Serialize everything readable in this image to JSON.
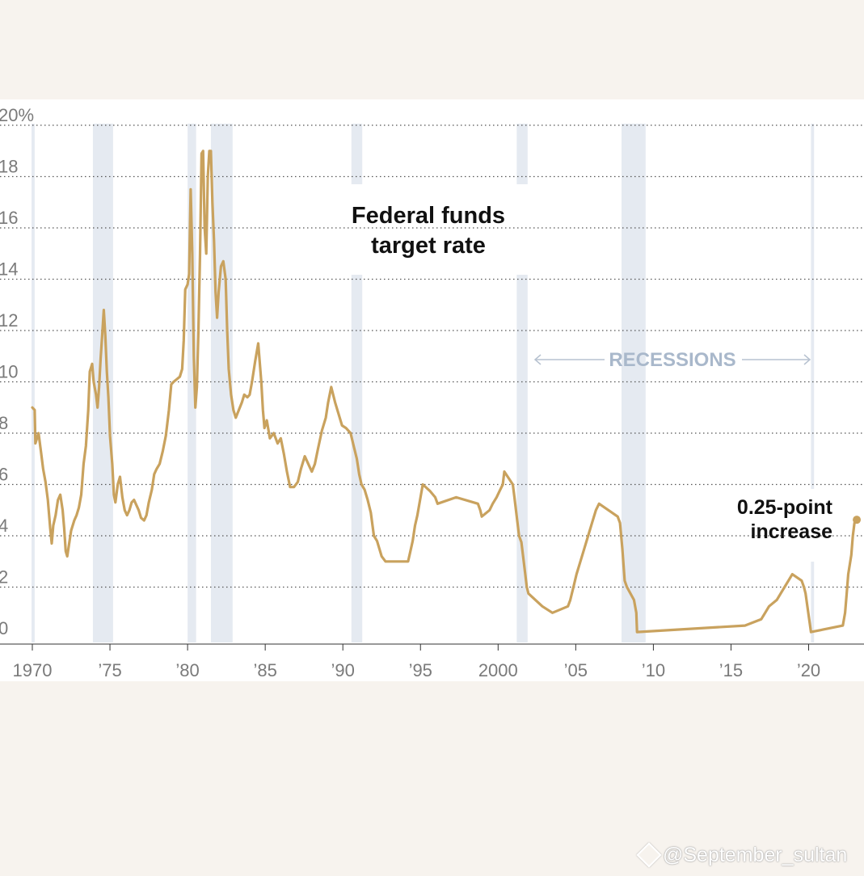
{
  "chart_data": {
    "type": "line",
    "title_lines": [
      "Federal funds",
      "target rate"
    ],
    "xlabel": "",
    "ylabel": "",
    "xlim": [
      1970,
      2023.5
    ],
    "ylim": [
      0,
      20
    ],
    "y_ticks": [
      {
        "value": 20,
        "label": "20%"
      },
      {
        "value": 18,
        "label": "18"
      },
      {
        "value": 16,
        "label": "16"
      },
      {
        "value": 14,
        "label": "14"
      },
      {
        "value": 12,
        "label": "12"
      },
      {
        "value": 10,
        "label": "10"
      },
      {
        "value": 8,
        "label": "8"
      },
      {
        "value": 6,
        "label": "6"
      },
      {
        "value": 4,
        "label": "4"
      },
      {
        "value": 2,
        "label": "2"
      },
      {
        "value": 0,
        "label": "0"
      }
    ],
    "x_ticks": [
      {
        "value": 1970,
        "label": "1970"
      },
      {
        "value": 1975,
        "label": "’75"
      },
      {
        "value": 1980,
        "label": "’80"
      },
      {
        "value": 1985,
        "label": "’85"
      },
      {
        "value": 1990,
        "label": "’90"
      },
      {
        "value": 1995,
        "label": "’95"
      },
      {
        "value": 2000,
        "label": "2000"
      },
      {
        "value": 2005,
        "label": "’05"
      },
      {
        "value": 2010,
        "label": "’10"
      },
      {
        "value": 2015,
        "label": "’15"
      },
      {
        "value": 2020,
        "label": "’20"
      }
    ],
    "grid": true,
    "recessions_label": "RECESSIONS",
    "recessions": [
      [
        1969.95,
        1970.15
      ],
      [
        1973.9,
        1975.2
      ],
      [
        1980.0,
        1980.55
      ],
      [
        1981.5,
        1982.9
      ],
      [
        1990.55,
        1991.25
      ],
      [
        2001.2,
        2001.9
      ],
      [
        2007.95,
        2009.5
      ],
      [
        2020.15,
        2020.35
      ]
    ],
    "annotation": {
      "lines": [
        "0.25-point",
        "increase"
      ],
      "x": 2023.1,
      "y": 4.625
    },
    "series": [
      {
        "name": "",
        "color": "#c9a25e",
        "points": [
          [
            1970.0,
            9.0
          ],
          [
            1970.15,
            8.9
          ],
          [
            1970.2,
            7.6
          ],
          [
            1970.4,
            8.0
          ],
          [
            1970.55,
            7.3
          ],
          [
            1970.7,
            6.6
          ],
          [
            1970.85,
            6.1
          ],
          [
            1971.0,
            5.4
          ],
          [
            1971.15,
            4.3
          ],
          [
            1971.25,
            3.7
          ],
          [
            1971.35,
            4.4
          ],
          [
            1971.5,
            4.8
          ],
          [
            1971.65,
            5.4
          ],
          [
            1971.8,
            5.6
          ],
          [
            1971.95,
            5.0
          ],
          [
            1972.05,
            4.3
          ],
          [
            1972.15,
            3.4
          ],
          [
            1972.25,
            3.2
          ],
          [
            1972.35,
            3.6
          ],
          [
            1972.5,
            4.2
          ],
          [
            1972.7,
            4.6
          ],
          [
            1972.85,
            4.8
          ],
          [
            1973.0,
            5.1
          ],
          [
            1973.15,
            5.6
          ],
          [
            1973.3,
            6.8
          ],
          [
            1973.45,
            7.5
          ],
          [
            1973.6,
            8.9
          ],
          [
            1973.7,
            10.4
          ],
          [
            1973.85,
            10.7
          ],
          [
            1973.95,
            10.0
          ],
          [
            1974.1,
            9.5
          ],
          [
            1974.2,
            9.0
          ],
          [
            1974.3,
            9.8
          ],
          [
            1974.4,
            10.9
          ],
          [
            1974.5,
            11.8
          ],
          [
            1974.6,
            12.8
          ],
          [
            1974.7,
            11.8
          ],
          [
            1974.8,
            10.4
          ],
          [
            1974.9,
            9.4
          ],
          [
            1975.0,
            7.9
          ],
          [
            1975.15,
            6.8
          ],
          [
            1975.25,
            5.6
          ],
          [
            1975.35,
            5.3
          ],
          [
            1975.5,
            6.0
          ],
          [
            1975.65,
            6.3
          ],
          [
            1975.8,
            5.5
          ],
          [
            1975.95,
            5.0
          ],
          [
            1976.1,
            4.8
          ],
          [
            1976.25,
            5.0
          ],
          [
            1976.4,
            5.3
          ],
          [
            1976.55,
            5.4
          ],
          [
            1976.7,
            5.2
          ],
          [
            1976.85,
            5.0
          ],
          [
            1977.0,
            4.7
          ],
          [
            1977.2,
            4.6
          ],
          [
            1977.35,
            4.8
          ],
          [
            1977.5,
            5.3
          ],
          [
            1977.7,
            5.8
          ],
          [
            1977.85,
            6.4
          ],
          [
            1978.0,
            6.6
          ],
          [
            1978.2,
            6.8
          ],
          [
            1978.4,
            7.3
          ],
          [
            1978.6,
            7.9
          ],
          [
            1978.8,
            8.9
          ],
          [
            1978.95,
            9.9
          ],
          [
            1979.1,
            10.0
          ],
          [
            1979.3,
            10.1
          ],
          [
            1979.5,
            10.2
          ],
          [
            1979.65,
            10.5
          ],
          [
            1979.75,
            11.6
          ],
          [
            1979.85,
            13.6
          ],
          [
            1980.0,
            13.8
          ],
          [
            1980.1,
            14.2
          ],
          [
            1980.2,
            17.5
          ],
          [
            1980.3,
            15.0
          ],
          [
            1980.4,
            11.0
          ],
          [
            1980.5,
            9.0
          ],
          [
            1980.6,
            9.8
          ],
          [
            1980.7,
            12.0
          ],
          [
            1980.8,
            15.0
          ],
          [
            1980.9,
            18.9
          ],
          [
            1981.0,
            19.0
          ],
          [
            1981.1,
            16.0
          ],
          [
            1981.2,
            15.0
          ],
          [
            1981.3,
            18.0
          ],
          [
            1981.4,
            19.0
          ],
          [
            1981.5,
            19.0
          ],
          [
            1981.6,
            17.0
          ],
          [
            1981.7,
            15.5
          ],
          [
            1981.8,
            13.5
          ],
          [
            1981.9,
            12.5
          ],
          [
            1982.0,
            13.5
          ],
          [
            1982.15,
            14.5
          ],
          [
            1982.3,
            14.7
          ],
          [
            1982.45,
            14.0
          ],
          [
            1982.55,
            12.0
          ],
          [
            1982.65,
            10.5
          ],
          [
            1982.8,
            9.5
          ],
          [
            1982.95,
            8.9
          ],
          [
            1983.1,
            8.6
          ],
          [
            1983.3,
            8.9
          ],
          [
            1983.5,
            9.2
          ],
          [
            1983.65,
            9.5
          ],
          [
            1983.85,
            9.4
          ],
          [
            1984.0,
            9.5
          ],
          [
            1984.15,
            10.0
          ],
          [
            1984.35,
            10.8
          ],
          [
            1984.55,
            11.5
          ],
          [
            1984.75,
            10.0
          ],
          [
            1984.85,
            8.9
          ],
          [
            1984.95,
            8.2
          ],
          [
            1985.1,
            8.5
          ],
          [
            1985.3,
            7.8
          ],
          [
            1985.55,
            8.0
          ],
          [
            1985.8,
            7.6
          ],
          [
            1986.0,
            7.8
          ],
          [
            1986.2,
            7.2
          ],
          [
            1986.4,
            6.5
          ],
          [
            1986.6,
            5.9
          ],
          [
            1986.85,
            5.9
          ],
          [
            1987.1,
            6.1
          ],
          [
            1987.3,
            6.6
          ],
          [
            1987.55,
            7.1
          ],
          [
            1987.7,
            6.9
          ],
          [
            1987.85,
            6.7
          ],
          [
            1988.0,
            6.5
          ],
          [
            1988.2,
            6.8
          ],
          [
            1988.4,
            7.4
          ],
          [
            1988.65,
            8.1
          ],
          [
            1988.9,
            8.6
          ],
          [
            1989.05,
            9.2
          ],
          [
            1989.25,
            9.8
          ],
          [
            1989.5,
            9.2
          ],
          [
            1989.7,
            8.8
          ],
          [
            1989.95,
            8.3
          ],
          [
            1990.2,
            8.2
          ],
          [
            1990.5,
            8.0
          ],
          [
            1990.7,
            7.5
          ],
          [
            1990.9,
            7.0
          ],
          [
            1991.05,
            6.4
          ],
          [
            1991.2,
            6.0
          ],
          [
            1991.4,
            5.8
          ],
          [
            1991.6,
            5.4
          ],
          [
            1991.8,
            4.9
          ],
          [
            1992.0,
            4.0
          ],
          [
            1992.2,
            3.8
          ],
          [
            1992.5,
            3.2
          ],
          [
            1992.75,
            3.0
          ],
          [
            1993.5,
            3.0
          ],
          [
            1994.2,
            3.0
          ],
          [
            1994.35,
            3.4
          ],
          [
            1994.5,
            3.8
          ],
          [
            1994.65,
            4.4
          ],
          [
            1994.8,
            4.8
          ],
          [
            1995.0,
            5.5
          ],
          [
            1995.15,
            6.0
          ],
          [
            1995.6,
            5.75
          ],
          [
            1995.95,
            5.5
          ],
          [
            1996.1,
            5.25
          ],
          [
            1997.3,
            5.5
          ],
          [
            1998.7,
            5.25
          ],
          [
            1998.85,
            5.0
          ],
          [
            1998.95,
            4.75
          ],
          [
            1999.45,
            5.0
          ],
          [
            1999.65,
            5.25
          ],
          [
            1999.9,
            5.5
          ],
          [
            2000.1,
            5.75
          ],
          [
            2000.3,
            6.0
          ],
          [
            2000.4,
            6.5
          ],
          [
            2000.95,
            6.0
          ],
          [
            2001.05,
            5.5
          ],
          [
            2001.15,
            5.0
          ],
          [
            2001.25,
            4.5
          ],
          [
            2001.35,
            4.0
          ],
          [
            2001.5,
            3.75
          ],
          [
            2001.65,
            3.0
          ],
          [
            2001.75,
            2.5
          ],
          [
            2001.85,
            2.0
          ],
          [
            2001.95,
            1.75
          ],
          [
            2002.85,
            1.25
          ],
          [
            2003.5,
            1.0
          ],
          [
            2004.5,
            1.25
          ],
          [
            2004.65,
            1.5
          ],
          [
            2004.85,
            2.0
          ],
          [
            2005.05,
            2.5
          ],
          [
            2005.3,
            3.0
          ],
          [
            2005.55,
            3.5
          ],
          [
            2005.8,
            4.0
          ],
          [
            2006.05,
            4.5
          ],
          [
            2006.3,
            5.0
          ],
          [
            2006.5,
            5.25
          ],
          [
            2007.7,
            4.75
          ],
          [
            2007.85,
            4.5
          ],
          [
            2008.0,
            3.5
          ],
          [
            2008.15,
            2.25
          ],
          [
            2008.3,
            2.0
          ],
          [
            2008.75,
            1.5
          ],
          [
            2008.9,
            1.0
          ],
          [
            2008.95,
            0.25
          ],
          [
            2015.9,
            0.5
          ],
          [
            2016.95,
            0.75
          ],
          [
            2017.2,
            1.0
          ],
          [
            2017.45,
            1.25
          ],
          [
            2017.95,
            1.5
          ],
          [
            2018.2,
            1.75
          ],
          [
            2018.45,
            2.0
          ],
          [
            2018.7,
            2.25
          ],
          [
            2018.95,
            2.5
          ],
          [
            2019.55,
            2.25
          ],
          [
            2019.7,
            2.0
          ],
          [
            2019.8,
            1.75
          ],
          [
            2020.15,
            0.25
          ],
          [
            2022.2,
            0.5
          ],
          [
            2022.35,
            1.0
          ],
          [
            2022.45,
            1.75
          ],
          [
            2022.55,
            2.5
          ],
          [
            2022.75,
            3.25
          ],
          [
            2022.85,
            4.0
          ],
          [
            2022.95,
            4.5
          ],
          [
            2023.1,
            4.625
          ]
        ]
      }
    ]
  },
  "watermark": {
    "text": "@September_sultan"
  }
}
